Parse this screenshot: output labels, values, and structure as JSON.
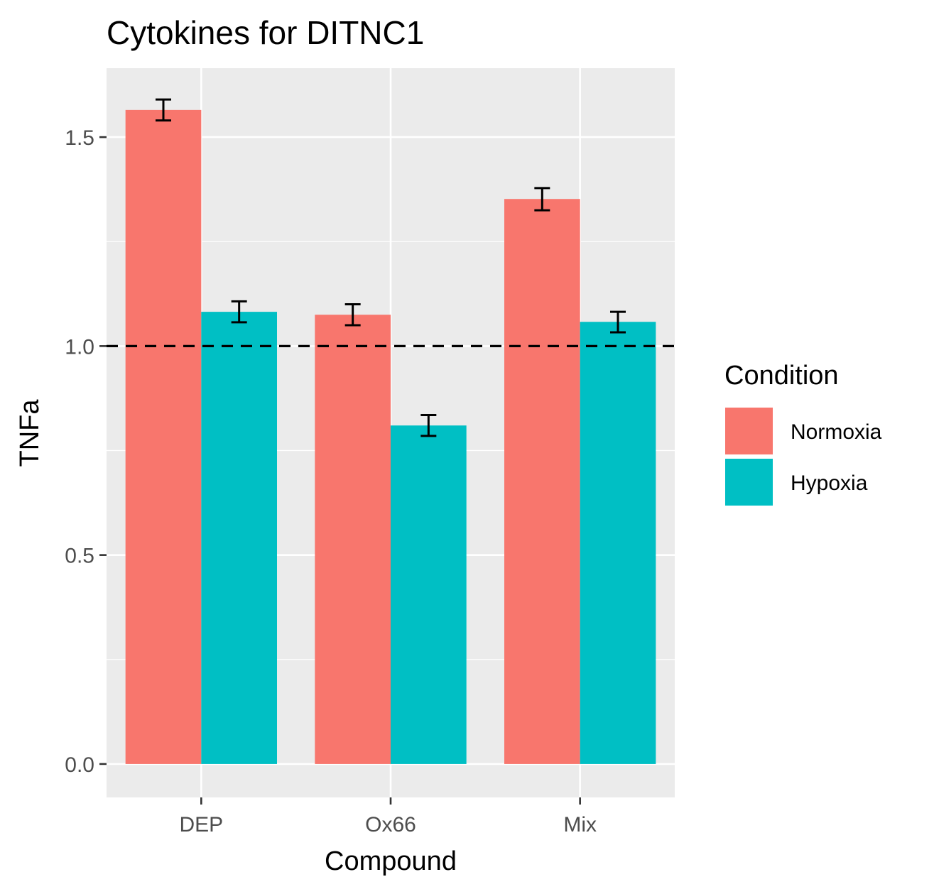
{
  "chart_data": {
    "type": "bar",
    "title": "Cytokines for DITNC1",
    "xlabel": "Compound",
    "ylabel": "TNFa",
    "categories": [
      "DEP",
      "Ox66",
      "Mix"
    ],
    "series": [
      {
        "name": "Normoxia",
        "color": "#F8766D",
        "values": [
          1.565,
          1.075,
          1.352
        ],
        "error_low": [
          1.54,
          1.05,
          1.325
        ],
        "error_high": [
          1.59,
          1.1,
          1.378
        ]
      },
      {
        "name": "Hypoxia",
        "color": "#00BFC4",
        "values": [
          1.082,
          0.81,
          1.058
        ],
        "error_low": [
          1.057,
          0.785,
          1.033
        ],
        "error_high": [
          1.107,
          0.835,
          1.082
        ]
      }
    ],
    "yticks": [
      0.0,
      0.5,
      1.0,
      1.5
    ],
    "ytick_labels": [
      "0.0",
      "0.5",
      "1.0",
      "1.5"
    ],
    "ylim": [
      -0.08,
      1.665
    ],
    "reference_line": {
      "y": 1.0,
      "style": "dashed",
      "color": "#000000"
    },
    "legend": {
      "title": "Condition",
      "position": "right"
    },
    "panel_background": "#EBEBEB",
    "grid": true
  }
}
